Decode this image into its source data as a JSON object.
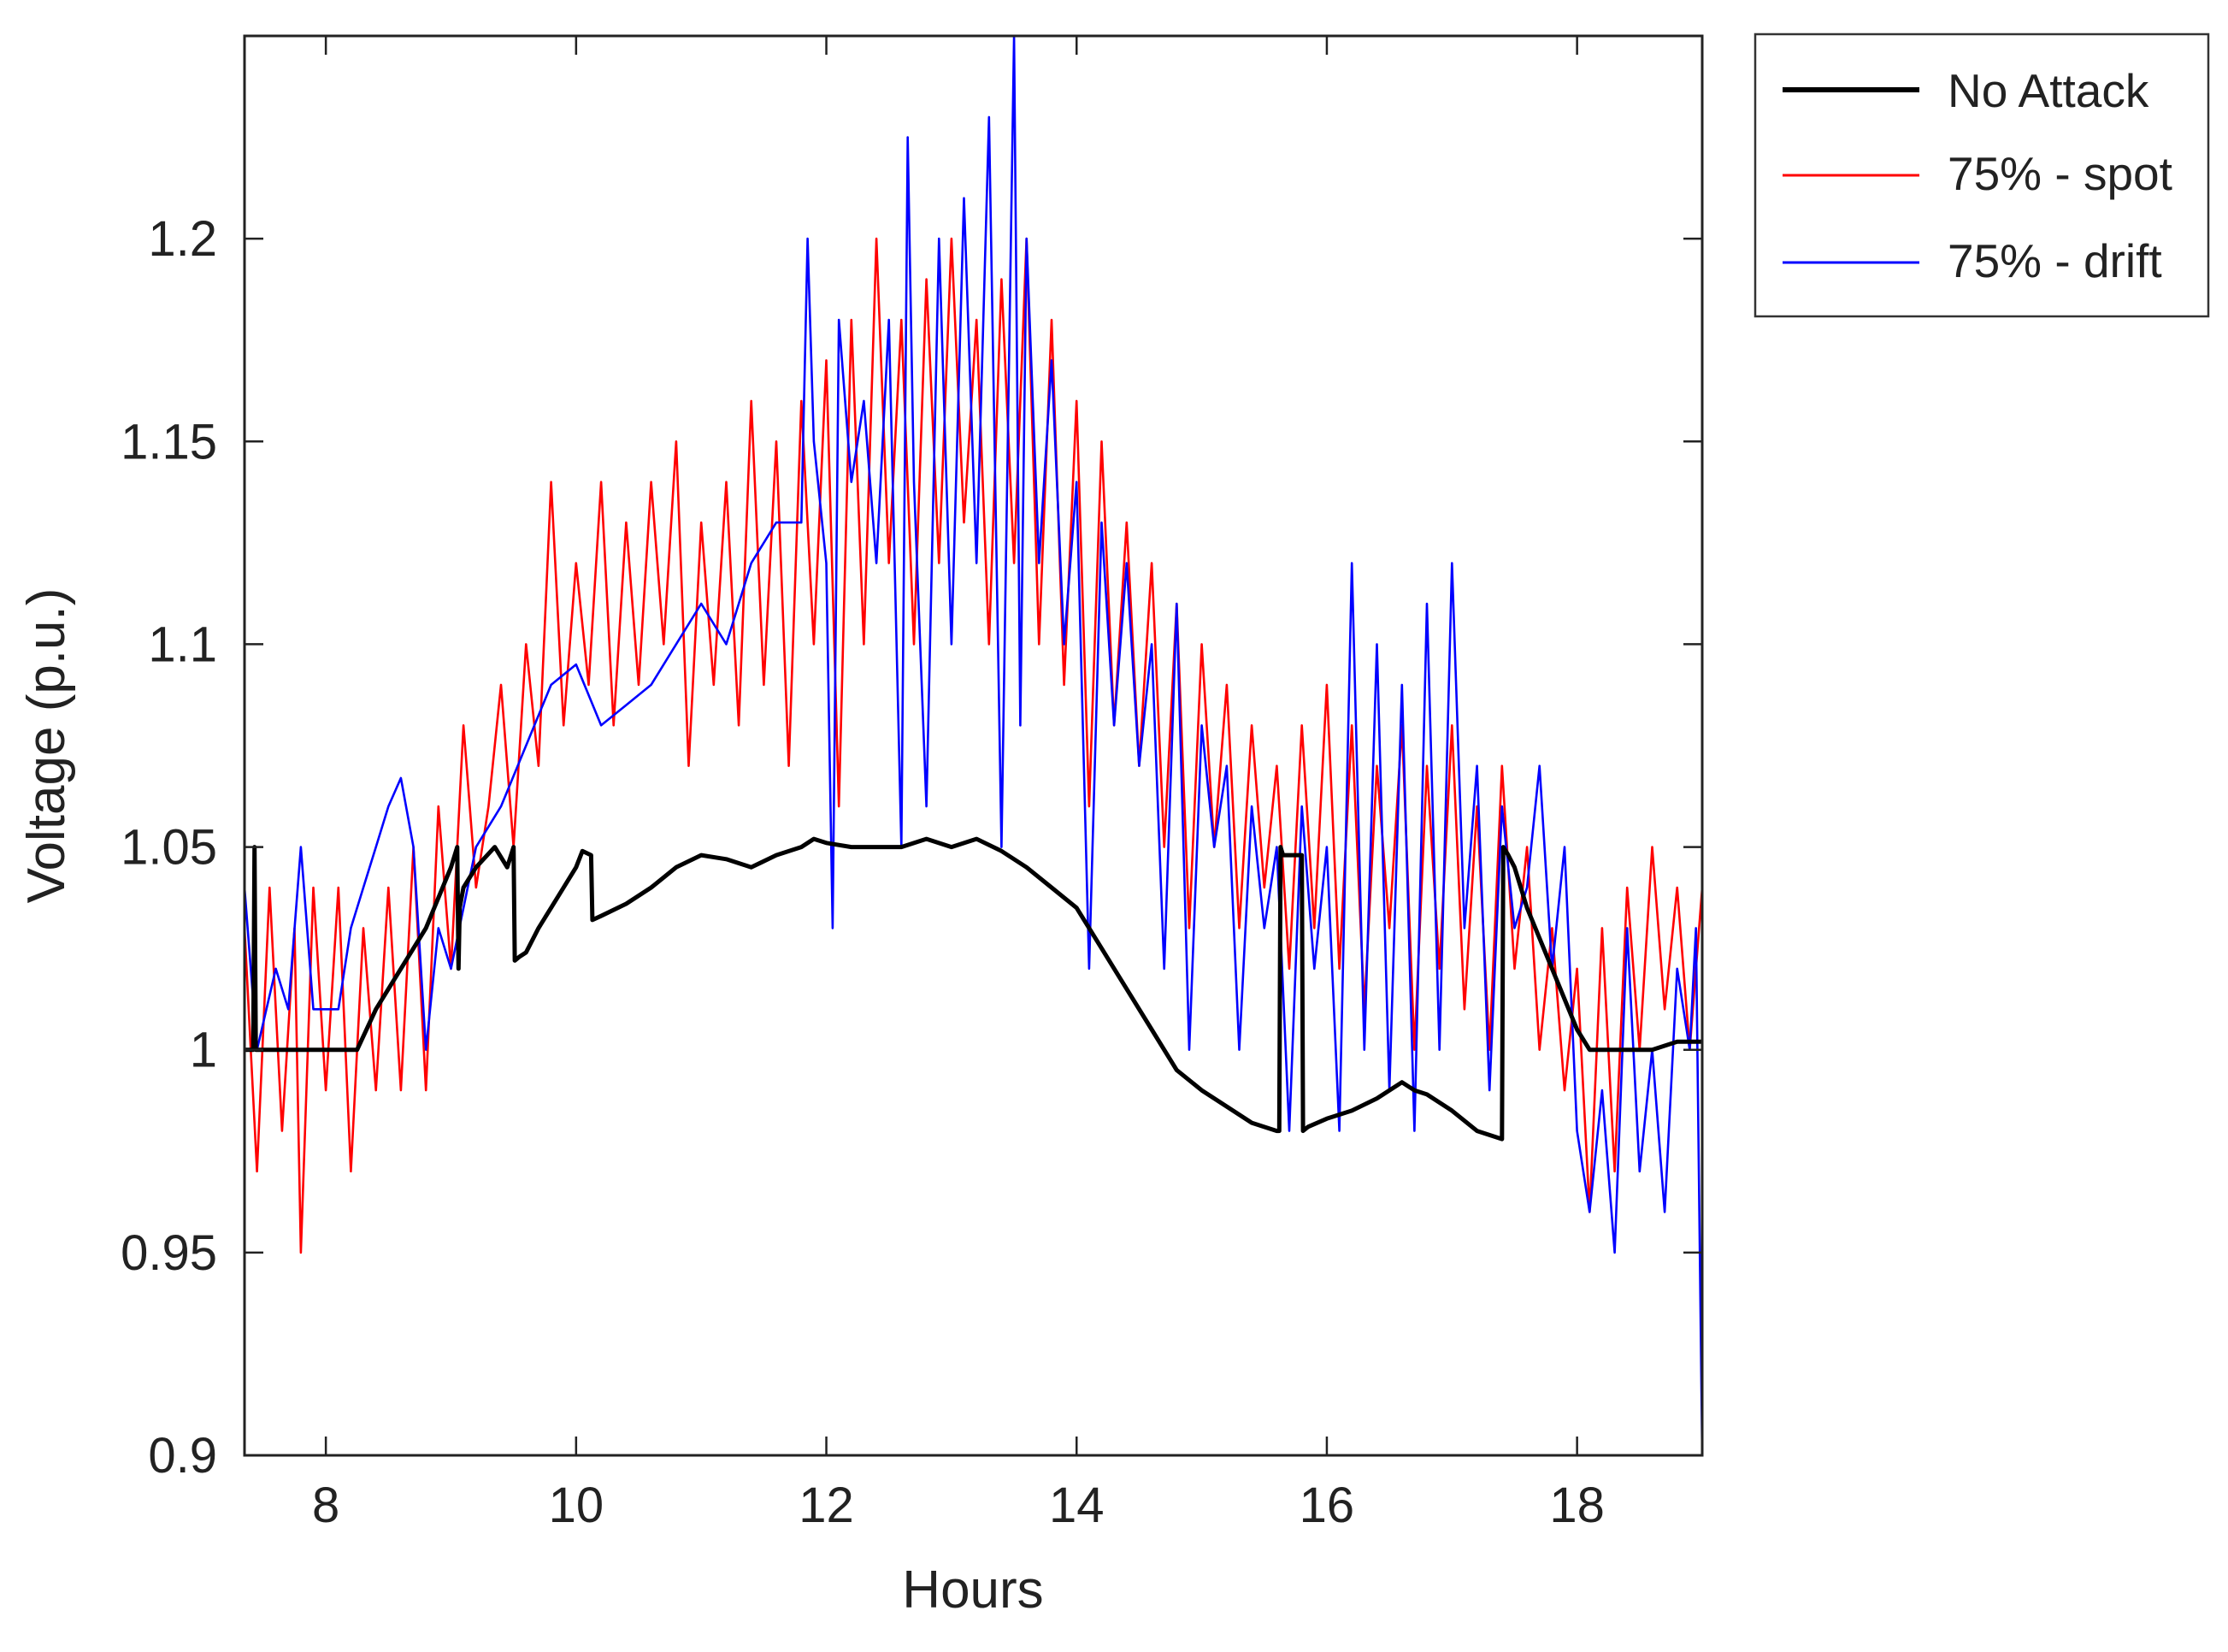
{
  "chart_data": {
    "type": "line",
    "title": "",
    "xlabel": "Hours",
    "ylabel": "Voltage (p.u.)",
    "xlim": [
      7.35,
      19.0
    ],
    "ylim": [
      0.9,
      1.25
    ],
    "xticks": [
      8,
      10,
      12,
      14,
      16,
      18
    ],
    "xtick_labels": [
      "8",
      "10",
      "12",
      "14",
      "16",
      "18"
    ],
    "yticks": [
      0.9,
      0.95,
      1.0,
      1.05,
      1.1,
      1.15,
      1.2
    ],
    "ytick_labels": [
      "0.9",
      "0.95",
      "1",
      "1.05",
      "1.1",
      "1.15",
      "1.2"
    ],
    "grid": false,
    "legend_position": "outside-top-right",
    "series": [
      {
        "name": "No Attack",
        "color": "#000000",
        "x": [
          7.35,
          7.42,
          7.43,
          7.44,
          7.5,
          8.0,
          8.25,
          8.4,
          8.6,
          8.8,
          9.0,
          9.05,
          9.06,
          9.07,
          9.1,
          9.2,
          9.35,
          9.45,
          9.5,
          9.51,
          9.55,
          9.6,
          9.7,
          9.8,
          9.9,
          10.0,
          10.05,
          10.12,
          10.13,
          10.2,
          10.4,
          10.6,
          10.8,
          11.0,
          11.2,
          11.4,
          11.6,
          11.8,
          11.9,
          12.0,
          12.2,
          12.4,
          12.6,
          12.8,
          13.0,
          13.2,
          13.4,
          13.6,
          13.8,
          14.0,
          14.2,
          14.4,
          14.6,
          14.8,
          15.0,
          15.2,
          15.4,
          15.6,
          15.62,
          15.63,
          15.65,
          15.8,
          15.81,
          15.85,
          16.0,
          16.2,
          16.4,
          16.6,
          16.7,
          16.8,
          17.0,
          17.2,
          17.4,
          17.41,
          17.45,
          17.5,
          17.6,
          17.8,
          18.0,
          18.1,
          18.2,
          18.4,
          18.6,
          18.8,
          18.9,
          19.0
        ],
        "y": [
          1.0,
          1.0,
          1.05,
          1.0,
          1.0,
          1.0,
          1.0,
          1.01,
          1.02,
          1.03,
          1.045,
          1.05,
          1.02,
          1.035,
          1.04,
          1.045,
          1.05,
          1.045,
          1.05,
          1.022,
          1.023,
          1.024,
          1.03,
          1.035,
          1.04,
          1.045,
          1.049,
          1.048,
          1.032,
          1.033,
          1.036,
          1.04,
          1.045,
          1.048,
          1.047,
          1.045,
          1.048,
          1.05,
          1.052,
          1.051,
          1.05,
          1.05,
          1.05,
          1.052,
          1.05,
          1.052,
          1.049,
          1.045,
          1.04,
          1.035,
          1.025,
          1.015,
          1.005,
          0.995,
          0.99,
          0.986,
          0.982,
          0.98,
          0.98,
          1.05,
          1.048,
          1.048,
          0.98,
          0.981,
          0.983,
          0.985,
          0.988,
          0.992,
          0.99,
          0.989,
          0.985,
          0.98,
          0.978,
          1.05,
          1.048,
          1.045,
          1.035,
          1.02,
          1.005,
          1.0,
          1.0,
          1.0,
          1.0,
          1.002,
          1.002,
          1.002
        ]
      },
      {
        "name": "75% - spot",
        "color": "#ff0000",
        "x": [
          7.35,
          7.45,
          7.55,
          7.65,
          7.75,
          7.8,
          7.9,
          8.0,
          8.1,
          8.2,
          8.3,
          8.4,
          8.5,
          8.6,
          8.7,
          8.8,
          8.9,
          9.0,
          9.1,
          9.2,
          9.3,
          9.4,
          9.5,
          9.6,
          9.7,
          9.8,
          9.9,
          10.0,
          10.1,
          10.2,
          10.3,
          10.4,
          10.5,
          10.6,
          10.7,
          10.8,
          10.9,
          11.0,
          11.1,
          11.2,
          11.3,
          11.4,
          11.5,
          11.6,
          11.7,
          11.8,
          11.9,
          12.0,
          12.1,
          12.2,
          12.3,
          12.4,
          12.5,
          12.6,
          12.7,
          12.8,
          12.9,
          13.0,
          13.1,
          13.2,
          13.3,
          13.4,
          13.5,
          13.6,
          13.7,
          13.8,
          13.9,
          14.0,
          14.1,
          14.2,
          14.3,
          14.4,
          14.5,
          14.6,
          14.7,
          14.8,
          14.9,
          15.0,
          15.1,
          15.2,
          15.3,
          15.4,
          15.5,
          15.6,
          15.7,
          15.8,
          15.9,
          16.0,
          16.1,
          16.2,
          16.3,
          16.4,
          16.5,
          16.6,
          16.7,
          16.8,
          16.9,
          17.0,
          17.1,
          17.2,
          17.3,
          17.4,
          17.5,
          17.6,
          17.7,
          17.8,
          17.9,
          18.0,
          18.1,
          18.2,
          18.3,
          18.4,
          18.5,
          18.6,
          18.7,
          18.8,
          18.9,
          19.0
        ],
        "y": [
          1.03,
          0.97,
          1.04,
          0.98,
          1.03,
          0.95,
          1.04,
          0.99,
          1.04,
          0.97,
          1.03,
          0.99,
          1.04,
          0.99,
          1.05,
          0.99,
          1.06,
          1.02,
          1.08,
          1.04,
          1.06,
          1.09,
          1.05,
          1.1,
          1.07,
          1.14,
          1.08,
          1.12,
          1.09,
          1.14,
          1.08,
          1.13,
          1.09,
          1.14,
          1.1,
          1.15,
          1.07,
          1.13,
          1.09,
          1.14,
          1.08,
          1.16,
          1.09,
          1.15,
          1.07,
          1.16,
          1.1,
          1.17,
          1.06,
          1.18,
          1.1,
          1.2,
          1.12,
          1.18,
          1.1,
          1.19,
          1.12,
          1.2,
          1.13,
          1.18,
          1.1,
          1.19,
          1.12,
          1.2,
          1.1,
          1.18,
          1.09,
          1.16,
          1.06,
          1.15,
          1.08,
          1.13,
          1.07,
          1.12,
          1.05,
          1.11,
          1.03,
          1.1,
          1.05,
          1.09,
          1.03,
          1.08,
          1.04,
          1.07,
          1.02,
          1.08,
          1.03,
          1.09,
          1.02,
          1.08,
          1.01,
          1.07,
          1.03,
          1.08,
          1.0,
          1.07,
          1.02,
          1.08,
          1.01,
          1.06,
          1.0,
          1.07,
          1.02,
          1.05,
          1.0,
          1.03,
          0.99,
          1.02,
          0.96,
          1.03,
          0.97,
          1.04,
          1.0,
          1.05,
          1.01,
          1.04,
          1.0,
          1.04
        ]
      },
      {
        "name": "75% - drift",
        "color": "#0000ff",
        "x": [
          7.35,
          7.45,
          7.6,
          7.7,
          7.8,
          7.9,
          8.0,
          8.1,
          8.2,
          8.3,
          8.4,
          8.5,
          8.6,
          8.7,
          8.8,
          8.9,
          9.0,
          9.2,
          9.4,
          9.6,
          9.8,
          10.0,
          10.2,
          10.4,
          10.6,
          10.8,
          11.0,
          11.2,
          11.4,
          11.6,
          11.8,
          11.85,
          11.9,
          12.0,
          12.05,
          12.1,
          12.2,
          12.3,
          12.4,
          12.5,
          12.6,
          12.65,
          12.7,
          12.8,
          12.9,
          13.0,
          13.1,
          13.2,
          13.3,
          13.4,
          13.5,
          13.55,
          13.6,
          13.7,
          13.8,
          13.9,
          14.0,
          14.1,
          14.2,
          14.3,
          14.4,
          14.5,
          14.6,
          14.7,
          14.8,
          14.9,
          15.0,
          15.1,
          15.2,
          15.3,
          15.4,
          15.5,
          15.6,
          15.7,
          15.8,
          15.9,
          16.0,
          16.1,
          16.2,
          16.3,
          16.4,
          16.5,
          16.6,
          16.7,
          16.8,
          16.9,
          17.0,
          17.1,
          17.2,
          17.3,
          17.4,
          17.5,
          17.6,
          17.7,
          17.8,
          17.9,
          18.0,
          18.1,
          18.2,
          18.3,
          18.4,
          18.5,
          18.6,
          18.7,
          18.8,
          18.9,
          18.95,
          19.0
        ],
        "y": [
          1.04,
          1.0,
          1.02,
          1.01,
          1.05,
          1.01,
          1.01,
          1.01,
          1.03,
          1.04,
          1.05,
          1.06,
          1.067,
          1.05,
          1.0,
          1.03,
          1.02,
          1.05,
          1.06,
          1.075,
          1.09,
          1.095,
          1.08,
          1.085,
          1.09,
          1.1,
          1.11,
          1.1,
          1.12,
          1.13,
          1.13,
          1.2,
          1.15,
          1.12,
          1.03,
          1.18,
          1.14,
          1.16,
          1.12,
          1.18,
          1.05,
          1.225,
          1.14,
          1.06,
          1.2,
          1.1,
          1.21,
          1.12,
          1.23,
          1.05,
          1.25,
          1.08,
          1.2,
          1.12,
          1.17,
          1.1,
          1.14,
          1.02,
          1.13,
          1.08,
          1.12,
          1.07,
          1.1,
          1.02,
          1.11,
          1.0,
          1.08,
          1.05,
          1.07,
          1.0,
          1.06,
          1.03,
          1.05,
          0.98,
          1.06,
          1.02,
          1.05,
          0.98,
          1.12,
          1.0,
          1.1,
          0.99,
          1.09,
          0.98,
          1.11,
          1.0,
          1.12,
          1.03,
          1.07,
          0.99,
          1.06,
          1.03,
          1.04,
          1.07,
          1.02,
          1.05,
          0.98,
          0.96,
          0.99,
          0.95,
          1.03,
          0.97,
          1.0,
          0.96,
          1.02,
          1.0,
          1.03,
          0.9
        ]
      }
    ]
  }
}
